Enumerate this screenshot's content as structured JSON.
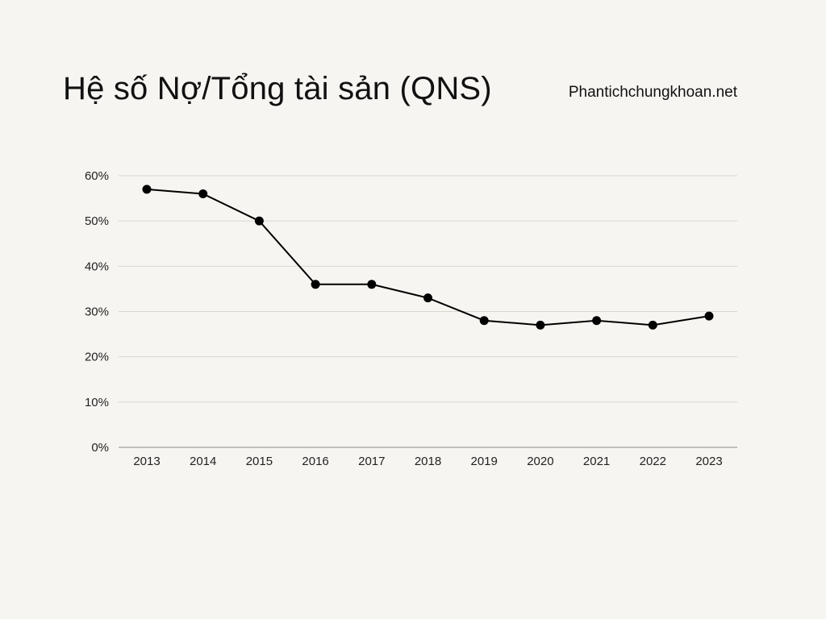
{
  "header": {
    "title": "Hệ số Nợ/Tổng tài sản (QNS)",
    "site": "Phantichchungkhoan.net"
  },
  "chart_data": {
    "type": "line",
    "title": "Hệ số Nợ/Tổng tài sản (QNS)",
    "xlabel": "",
    "ylabel": "",
    "categories": [
      "2013",
      "2014",
      "2015",
      "2016",
      "2017",
      "2018",
      "2019",
      "2020",
      "2021",
      "2022",
      "2023"
    ],
    "series": [
      {
        "values": [
          57,
          56,
          50,
          36,
          36,
          33,
          28,
          27,
          28,
          27,
          29
        ],
        "color": "#000000"
      }
    ],
    "y_ticks": [
      "0%",
      "10%",
      "20%",
      "30%",
      "40%",
      "50%",
      "60%"
    ],
    "y_unit": "%",
    "ylim": [
      0,
      60
    ],
    "grid": true,
    "legend": "none"
  }
}
